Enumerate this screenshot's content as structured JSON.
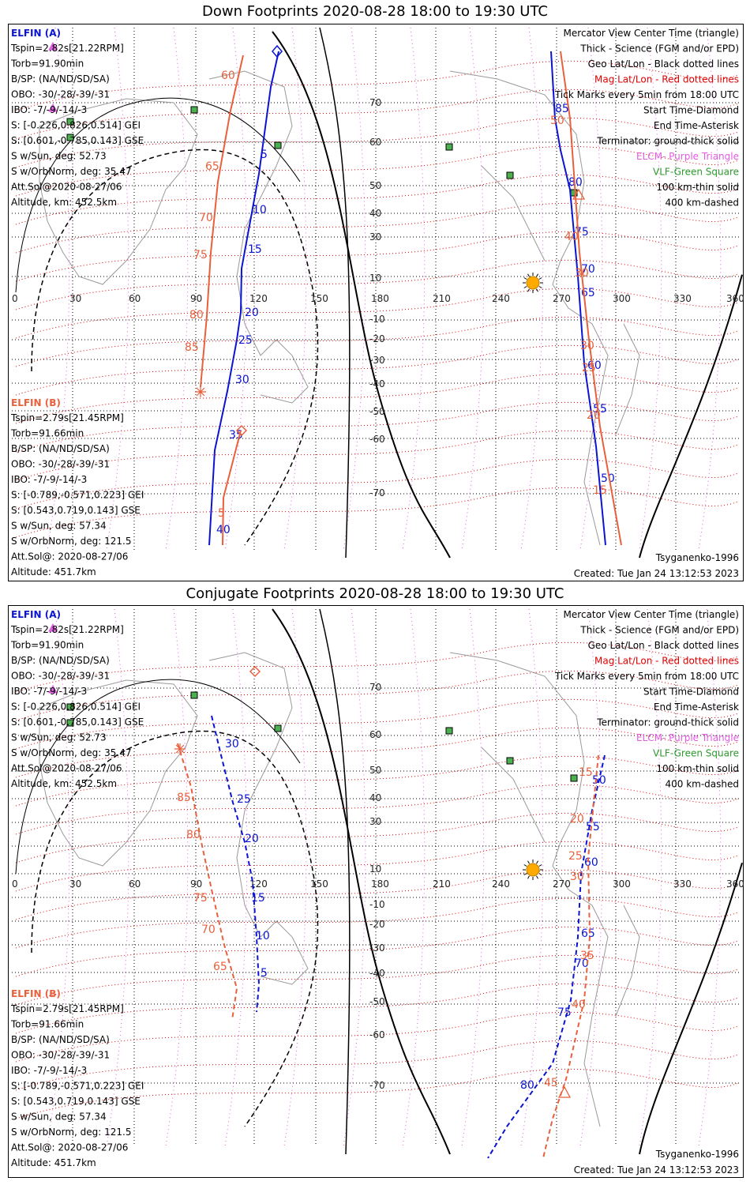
{
  "colors": {
    "elfin_a": "#0a14d2",
    "elfin_b": "#e8603c",
    "geo_grid": "#000000",
    "mag_grid": "#e00000",
    "elcm": "#e35ce3",
    "vlf": "#2c9a2c",
    "vlf_fill": "#4caf50",
    "sun": "#ffaa00",
    "coast": "#9a9a9a"
  },
  "axes": {
    "lon_ticks": [
      "0",
      "30",
      "60",
      "90",
      "120",
      "150",
      "180",
      "210",
      "240",
      "270",
      "300",
      "330",
      "360"
    ],
    "lat_ticks": [
      "70",
      "60",
      "50",
      "40",
      "30",
      "10",
      "-10",
      "-20",
      "-30",
      "-40",
      "-50",
      "-60",
      "-70"
    ]
  },
  "panels": [
    {
      "title": "Down Footprints 2020-08-28 18:00 to 19:30 UTC",
      "elfin_a": {
        "header": "ELFIN (A)",
        "lines": [
          "Tspin=2.82s[21.22RPM]",
          "Torb=91.90min",
          "B/SP: (NA/ND/SD/SA)",
          "OBO: -30/-28/-39/-31",
          "IBO: -7/-9/-14/-3",
          "S: [-0.226,0.826,0.514] GEI",
          "S: [0.601,-0.785,0.143] GSE",
          "S w/Sun, deg: 52.73",
          "S w/OrbNorm, deg: 35.47",
          "Att.Sol@2020-08-27/06",
          "Altitude, km: 452.5km"
        ]
      },
      "elfin_b": {
        "header": "ELFIN (B)",
        "lines": [
          "Tspin=2.79s[21.45RPM]",
          "Torb=91.66min",
          "B/SP: (NA/ND/SD/SA)",
          "OBO: -30/-28/-39/-31",
          "IBO: -7/-9/-14/-3",
          "S: [-0.789,-0.571,0.223] GEI",
          "S: [0.543,0.719,0.143] GSE",
          "S w/Sun, deg: 57.34",
          "S w/OrbNorm, deg: 121.5",
          "Att.Sol@: 2020-08-27/06",
          "Altitude: 451.7km"
        ]
      },
      "legend": [
        "Mercator View Center Time (triangle)",
        "Thick - Science (FGM and/or EPD)",
        "Geo Lat/Lon - Black dotted lines",
        "Mag Lat/Lon - Red dotted lines",
        "Tick Marks every 5min from 18:00 UTC",
        "Start Time-Diamond",
        "End Time-Asterisk",
        "Terminator: ground-thick solid",
        "ELCM- Purple Triangle",
        "VLF-Green Square",
        "100 km-thin solid",
        "400 km-dashed"
      ],
      "model": "Tsyganenko-1996",
      "created": "Created: Tue Jan 24 13:12:53 2023",
      "tracks": {
        "a_west": {
          "dashed": false,
          "points": [
            [
              343,
              35
            ],
            [
              333,
              80
            ],
            [
              318,
              190
            ],
            [
              296,
              310
            ],
            [
              295,
              365
            ],
            [
              290,
              400
            ],
            [
              278,
              465
            ],
            [
              262,
              540
            ],
            [
              255,
              660
            ]
          ],
          "labels": [
            [
              "5",
              320,
              170
            ],
            [
              "10",
              310,
              240
            ],
            [
              "15",
              304,
              290
            ],
            [
              "20",
              300,
              370
            ],
            [
              "25",
              292,
              405
            ],
            [
              "30",
              288,
              455
            ],
            [
              "35",
              280,
              525
            ],
            [
              "40",
              264,
              645
            ]
          ]
        },
        "b_west": {
          "dashed": false,
          "points": [
            [
              298,
              40
            ],
            [
              282,
              110
            ],
            [
              266,
              200
            ],
            [
              257,
              290
            ],
            [
              252,
              370
            ],
            [
              244,
              460
            ]
          ],
          "end_tail": [
            [
              295,
              515
            ],
            [
              273,
              600
            ],
            [
              272,
              660
            ]
          ],
          "labels": [
            [
              "60",
              270,
              70
            ],
            [
              "65",
              250,
              185
            ],
            [
              "70",
              242,
              250
            ],
            [
              "75",
              235,
              297
            ],
            [
              "80",
              230,
              373
            ],
            [
              "85",
              224,
              414
            ],
            [
              "5",
              266,
              624
            ]
          ]
        },
        "a_east": {
          "dashed": false,
          "points": [
            [
              688,
              35
            ],
            [
              693,
              120
            ],
            [
              700,
              160
            ],
            [
              712,
              210
            ],
            [
              722,
              320
            ],
            [
              730,
              430
            ],
            [
              745,
              535
            ],
            [
              757,
              660
            ]
          ],
          "labels": [
            [
              "85",
              693,
              112
            ],
            [
              "80",
              710,
              205
            ],
            [
              "75",
              718,
              268
            ],
            [
              "70",
              726,
              315
            ],
            [
              "65",
              726,
              345
            ],
            [
              "60",
              734,
              437
            ],
            [
              "55",
              741,
              492
            ],
            [
              "50",
              751,
              580
            ]
          ]
        },
        "b_east": {
          "dashed": false,
          "points": [
            [
              700,
              35
            ],
            [
              712,
              120
            ],
            [
              717,
              190
            ],
            [
              724,
              290
            ],
            [
              736,
              400
            ],
            [
              750,
              510
            ],
            [
              777,
              660
            ]
          ],
          "labels": [
            [
              "50",
              687,
              127
            ],
            [
              "40",
              705,
              274
            ],
            [
              "30",
              718,
              320
            ],
            [
              "30",
              725,
              412
            ],
            [
              "25",
              727,
              440
            ],
            [
              "20",
              733,
              500
            ],
            [
              "15",
              741,
              595
            ]
          ]
        }
      }
    },
    {
      "title": "Conjugate Footprints 2020-08-28 18:00 to 19:30 UTC",
      "elfin_a": {
        "header": "ELFIN (A)",
        "lines": [
          "Tspin=2.82s[21.22RPM]",
          "Torb=91.90min",
          "B/SP: (NA/ND/SD/SA)",
          "OBO: -30/-28/-39/-31",
          "IBO: -7/-9/-14/-3",
          "S: [-0.226,0.826,0.514] GEI",
          "S: [0.601,-0.785,0.143] GSE",
          "S w/Sun, deg: 52.73",
          "S w/OrbNorm, deg: 35.47",
          "Att.Sol@2020-08-27/06",
          "Altitude, km: 452.5km"
        ]
      },
      "elfin_b": {
        "header": "ELFIN (B)",
        "lines": [
          "Tspin=2.79s[21.45RPM]",
          "Torb=91.66min",
          "B/SP: (NA/ND/SD/SA)",
          "OBO: -30/-28/-39/-31",
          "IBO: -7/-9/-14/-3",
          "S: [-0.789,-0.571,0.223] GEI",
          "S: [0.543,0.719,0.143] GSE",
          "S w/Sun, deg: 57.34",
          "S w/OrbNorm, deg: 121.5",
          "Att.Sol@: 2020-08-27/06",
          "Altitude: 451.7km"
        ]
      },
      "legend": [
        "Mercator View Center Time (triangle)",
        "Thick - Science (FGM and/or EPD)",
        "Geo Lat/Lon - Black dotted lines",
        "Mag Lat/Lon - Red dotted lines",
        "Tick Marks every 5min from 18:00 UTC",
        "Start Time-Diamond",
        "End Time-Asterisk",
        "Terminator: ground-thick solid",
        "ELCM- Purple Triangle",
        "VLF-Green Square",
        "100 km-thin solid",
        "400 km-dashed"
      ],
      "model": "Tsyganenko-1996",
      "created": "Created: Tue Jan 24 13:12:53 2023",
      "tracks": {
        "a_west": {
          "dashed": true,
          "points": [
            [
              258,
              140
            ],
            [
              270,
              190
            ],
            [
              285,
              250
            ],
            [
              300,
              300
            ],
            [
              310,
              350
            ],
            [
              315,
              420
            ],
            [
              318,
              480
            ],
            [
              315,
              515
            ]
          ],
          "labels": [
            [
              "30",
              275,
              180
            ],
            [
              "25",
              290,
              250
            ],
            [
              "20",
              300,
              300
            ],
            [
              "15",
              308,
              375
            ],
            [
              "10",
              314,
              423
            ],
            [
              "5",
              320,
              470
            ]
          ]
        },
        "b_west": {
          "dashed": true,
          "points": [
            [
              215,
              175
            ],
            [
              232,
              230
            ],
            [
              245,
              300
            ],
            [
              258,
              360
            ],
            [
              274,
              430
            ],
            [
              290,
              485
            ],
            [
              284,
              525
            ]
          ],
          "labels": [
            [
              "85",
              214,
              248
            ],
            [
              "80",
              226,
              295
            ],
            [
              "75",
              235,
              375
            ],
            [
              "70",
              245,
              415
            ],
            [
              "65",
              260,
              462
            ]
          ]
        },
        "a_east": {
          "dashed": true,
          "points": [
            [
              756,
              190
            ],
            [
              740,
              260
            ],
            [
              726,
              340
            ],
            [
              722,
              420
            ],
            [
              713,
              500
            ],
            [
              690,
              580
            ],
            [
              632,
              660
            ],
            [
              608,
              700
            ]
          ],
          "labels": [
            [
              "50",
              740,
              226
            ],
            [
              "55",
              732,
              285
            ],
            [
              "60",
              730,
              330
            ],
            [
              "65",
              726,
              420
            ],
            [
              "70",
              718,
              458
            ],
            [
              "75",
              696,
              520
            ],
            [
              "80",
              649,
              612
            ]
          ]
        },
        "b_east": {
          "dashed": true,
          "points": [
            [
              748,
              190
            ],
            [
              741,
              260
            ],
            [
              735,
              320
            ],
            [
              737,
              420
            ],
            [
              730,
              500
            ],
            [
              707,
              600
            ],
            [
              690,
              650
            ],
            [
              678,
              700
            ]
          ],
          "labels": [
            [
              "15",
              723,
              216
            ],
            [
              "20",
              712,
              275
            ],
            [
              "25",
              710,
              322
            ],
            [
              "30",
              712,
              348
            ],
            [
              "35",
              725,
              448
            ],
            [
              "40",
              714,
              510
            ],
            [
              "45",
              679,
              609
            ]
          ]
        }
      }
    }
  ]
}
